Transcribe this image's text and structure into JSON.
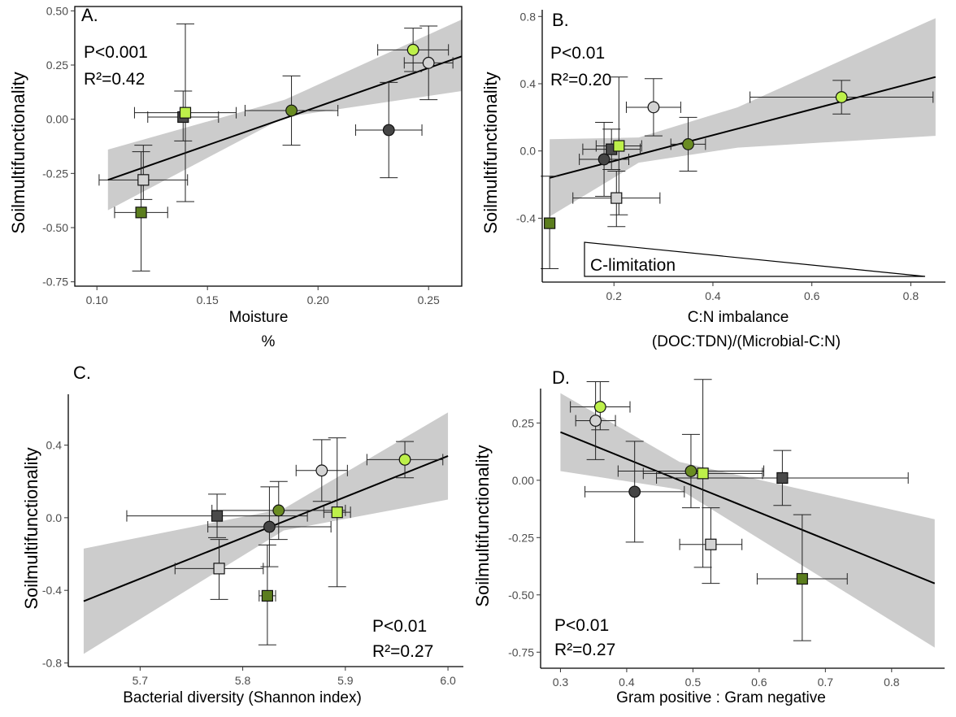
{
  "chart_data": [
    {
      "type": "scatter",
      "panel_label": "A.",
      "xlabel": "Moisture",
      "xlabel2": "%",
      "ylabel": "Soilmultifunctionality",
      "xlim": [
        0.09,
        0.265
      ],
      "ylim": [
        -0.77,
        0.52
      ],
      "xticks": [
        0.1,
        0.15,
        0.2,
        0.25
      ],
      "xtick_labels": [
        "0.10",
        "0.15",
        "0.20",
        "0.25"
      ],
      "yticks": [
        -0.75,
        -0.5,
        -0.25,
        0.0,
        0.25,
        0.5
      ],
      "ytick_labels": [
        "-0.75",
        "-0.50",
        "-0.25",
        "0.00",
        "0.25",
        "0.50"
      ],
      "stats": [
        "P<0.001",
        "R²=0.42"
      ],
      "stats_position": "top-left",
      "regression": {
        "x": [
          0.105,
          0.265
        ],
        "y": [
          -0.28,
          0.29
        ]
      },
      "band": {
        "x": [
          0.105,
          0.185,
          0.265
        ],
        "lower": [
          -0.42,
          0.01,
          0.13
        ],
        "upper": [
          -0.14,
          0.09,
          0.46
        ]
      },
      "points": [
        {
          "x": 0.12,
          "y": -0.43,
          "xerr": 0.012,
          "ylo": -0.7,
          "yhi": -0.15,
          "shape": "square",
          "color": "#5b7d1e"
        },
        {
          "x": 0.121,
          "y": -0.28,
          "xerr": 0.02,
          "ylo": -0.37,
          "yhi": -0.12,
          "shape": "square",
          "color": "#d3d3d3"
        },
        {
          "x": 0.139,
          "y": 0.01,
          "xerr": 0.016,
          "ylo": -0.1,
          "yhi": 0.13,
          "shape": "square",
          "color": "#4a4a4a"
        },
        {
          "x": 0.14,
          "y": 0.03,
          "xerr": 0.023,
          "ylo": -0.38,
          "yhi": 0.44,
          "shape": "square",
          "color": "#bdf04a"
        },
        {
          "x": 0.188,
          "y": 0.04,
          "xerr": 0.021,
          "ylo": -0.12,
          "yhi": 0.2,
          "shape": "circle",
          "color": "#6a8c22"
        },
        {
          "x": 0.232,
          "y": -0.05,
          "xerr": 0.015,
          "ylo": -0.27,
          "yhi": 0.17,
          "shape": "circle",
          "color": "#454545"
        },
        {
          "x": 0.243,
          "y": 0.32,
          "xerr": 0.016,
          "ylo": 0.22,
          "yhi": 0.42,
          "shape": "circle",
          "color": "#bdf04a"
        },
        {
          "x": 0.25,
          "y": 0.26,
          "xerr": 0.011,
          "ylo": 0.09,
          "yhi": 0.43,
          "shape": "circle",
          "color": "#d3d3d3"
        }
      ]
    },
    {
      "type": "scatter",
      "panel_label": "B.",
      "xlabel": "C:N imbalance",
      "xlabel2": "(DOC:TDN)/(Microbial-C:N)",
      "ylabel": "Soilmultifunctionality",
      "xlim": [
        0.055,
        0.87
      ],
      "ylim": [
        -0.78,
        0.84
      ],
      "xticks": [
        0.2,
        0.4,
        0.6,
        0.8
      ],
      "xtick_labels": [
        "0.2",
        "0.4",
        "0.6",
        "0.8"
      ],
      "yticks": [
        -0.4,
        0.0,
        0.4,
        0.8
      ],
      "ytick_labels": [
        "-0.4",
        "0.0",
        "0.4",
        "0.8"
      ],
      "stats": [
        "P<0.01",
        "R²=0.20"
      ],
      "stats_position": "top-left",
      "annotation": "C-limitation",
      "regression": {
        "x": [
          0.07,
          0.85
        ],
        "y": [
          -0.16,
          0.44
        ]
      },
      "band": {
        "x": [
          0.07,
          0.25,
          0.45,
          0.85
        ],
        "lower": [
          -0.39,
          -0.07,
          0.02,
          0.09
        ],
        "upper": [
          0.07,
          0.08,
          0.26,
          0.79
        ]
      },
      "points": [
        {
          "x": 0.07,
          "y": -0.43,
          "xerr": 0.004,
          "ylo": -0.7,
          "yhi": -0.15,
          "shape": "square",
          "color": "#5b7d1e"
        },
        {
          "x": 0.205,
          "y": -0.28,
          "xerr": 0.088,
          "ylo": -0.45,
          "yhi": -0.12,
          "shape": "square",
          "color": "#d3d3d3"
        },
        {
          "x": 0.195,
          "y": 0.01,
          "xerr": 0.058,
          "ylo": -0.11,
          "yhi": 0.13,
          "shape": "square",
          "color": "#4a4a4a"
        },
        {
          "x": 0.21,
          "y": 0.03,
          "xerr": 0.046,
          "ylo": -0.38,
          "yhi": 0.44,
          "shape": "square",
          "color": "#bdf04a"
        },
        {
          "x": 0.18,
          "y": -0.05,
          "xerr": 0.05,
          "ylo": -0.27,
          "yhi": 0.17,
          "shape": "circle",
          "color": "#454545"
        },
        {
          "x": 0.35,
          "y": 0.04,
          "xerr": 0.035,
          "ylo": -0.12,
          "yhi": 0.2,
          "shape": "circle",
          "color": "#6a8c22"
        },
        {
          "x": 0.28,
          "y": 0.26,
          "xerr": 0.055,
          "ylo": 0.09,
          "yhi": 0.43,
          "shape": "circle",
          "color": "#d3d3d3"
        },
        {
          "x": 0.66,
          "y": 0.32,
          "xerr": 0.185,
          "ylo": 0.22,
          "yhi": 0.42,
          "shape": "circle",
          "color": "#bdf04a"
        }
      ]
    },
    {
      "type": "scatter",
      "panel_label": "C.",
      "xlabel": "Bacterial diversity (Shannon index)",
      "ylabel": "Soilmultifunctionality",
      "xlim": [
        5.63,
        6.015
      ],
      "ylim": [
        -0.82,
        0.68
      ],
      "xticks": [
        5.7,
        5.8,
        5.9,
        6.0
      ],
      "xtick_labels": [
        "5.7",
        "5.8",
        "5.9",
        "6.0"
      ],
      "yticks": [
        -0.8,
        -0.4,
        0.0,
        0.4
      ],
      "ytick_labels": [
        "-0.8",
        "-0.4",
        "0.0",
        "0.4"
      ],
      "stats": [
        "P<0.01",
        "R²=0.27"
      ],
      "stats_position": "bottom-right",
      "regression": {
        "x": [
          5.645,
          6.0
        ],
        "y": [
          -0.46,
          0.34
        ]
      },
      "band": {
        "x": [
          5.645,
          5.84,
          6.0
        ],
        "lower": [
          -0.75,
          -0.07,
          0.1
        ],
        "upper": [
          -0.17,
          0.05,
          0.58
        ]
      },
      "points": [
        {
          "x": 5.824,
          "y": -0.43,
          "xerr": 0.008,
          "ylo": -0.7,
          "yhi": -0.15,
          "shape": "square",
          "color": "#5b7d1e"
        },
        {
          "x": 5.777,
          "y": -0.28,
          "xerr": 0.043,
          "ylo": -0.45,
          "yhi": -0.12,
          "shape": "square",
          "color": "#d3d3d3"
        },
        {
          "x": 5.775,
          "y": 0.01,
          "xerr": 0.088,
          "ylo": -0.11,
          "yhi": 0.13,
          "shape": "square",
          "color": "#4a4a4a"
        },
        {
          "x": 5.892,
          "y": 0.03,
          "xerr": 0.013,
          "ylo": -0.38,
          "yhi": 0.44,
          "shape": "square",
          "color": "#bdf04a"
        },
        {
          "x": 5.826,
          "y": -0.05,
          "xerr": 0.06,
          "ylo": -0.27,
          "yhi": 0.17,
          "shape": "circle",
          "color": "#454545"
        },
        {
          "x": 5.835,
          "y": 0.04,
          "xerr": 0.065,
          "ylo": -0.12,
          "yhi": 0.2,
          "shape": "circle",
          "color": "#6a8c22"
        },
        {
          "x": 5.877,
          "y": 0.26,
          "xerr": 0.025,
          "ylo": 0.09,
          "yhi": 0.43,
          "shape": "circle",
          "color": "#d3d3d3"
        },
        {
          "x": 5.958,
          "y": 0.32,
          "xerr": 0.037,
          "ylo": 0.22,
          "yhi": 0.42,
          "shape": "circle",
          "color": "#bdf04a"
        }
      ]
    },
    {
      "type": "scatter",
      "panel_label": "D.",
      "xlabel": "Gram positive : Gram negative",
      "ylabel": "Soilmultifunctionality",
      "xlim": [
        0.27,
        0.88
      ],
      "ylim": [
        -0.82,
        0.4
      ],
      "xticks": [
        0.3,
        0.4,
        0.5,
        0.6,
        0.7,
        0.8
      ],
      "xtick_labels": [
        "0.3",
        "0.4",
        "0.5",
        "0.6",
        "0.7",
        "0.8"
      ],
      "yticks": [
        -0.75,
        -0.5,
        -0.25,
        0.0,
        0.25
      ],
      "ytick_labels": [
        "-0.75",
        "-0.50",
        "-0.25",
        "0.00",
        "0.25"
      ],
      "stats": [
        "P<0.01",
        "R²=0.27"
      ],
      "stats_position": "bottom-left",
      "regression": {
        "x": [
          0.3,
          0.865
        ],
        "y": [
          0.21,
          -0.45
        ]
      },
      "band": {
        "x": [
          0.3,
          0.48,
          0.865
        ],
        "lower": [
          0.04,
          -0.04,
          -0.73
        ],
        "upper": [
          0.38,
          0.08,
          -0.17
        ]
      },
      "points": [
        {
          "x": 0.665,
          "y": -0.43,
          "xerr": 0.068,
          "ylo": -0.7,
          "yhi": -0.15,
          "shape": "square",
          "color": "#5b7d1e"
        },
        {
          "x": 0.527,
          "y": -0.28,
          "xerr": 0.047,
          "ylo": -0.45,
          "yhi": -0.12,
          "shape": "square",
          "color": "#d3d3d3"
        },
        {
          "x": 0.635,
          "y": 0.01,
          "xerr": 0.19,
          "ylo": -0.11,
          "yhi": 0.13,
          "shape": "square",
          "color": "#4a4a4a"
        },
        {
          "x": 0.515,
          "y": 0.03,
          "xerr": 0.09,
          "ylo": -0.38,
          "yhi": 0.44,
          "shape": "square",
          "color": "#bdf04a"
        },
        {
          "x": 0.412,
          "y": -0.05,
          "xerr": 0.075,
          "ylo": -0.27,
          "yhi": 0.17,
          "shape": "circle",
          "color": "#454545"
        },
        {
          "x": 0.497,
          "y": 0.04,
          "xerr": 0.11,
          "ylo": -0.12,
          "yhi": 0.2,
          "shape": "circle",
          "color": "#6a8c22"
        },
        {
          "x": 0.353,
          "y": 0.26,
          "xerr": 0.03,
          "ylo": 0.09,
          "yhi": 0.43,
          "shape": "circle",
          "color": "#d3d3d3"
        },
        {
          "x": 0.36,
          "y": 0.32,
          "xerr": 0.045,
          "ylo": 0.22,
          "yhi": 0.43,
          "shape": "circle",
          "color": "#bdf04a"
        }
      ]
    }
  ]
}
